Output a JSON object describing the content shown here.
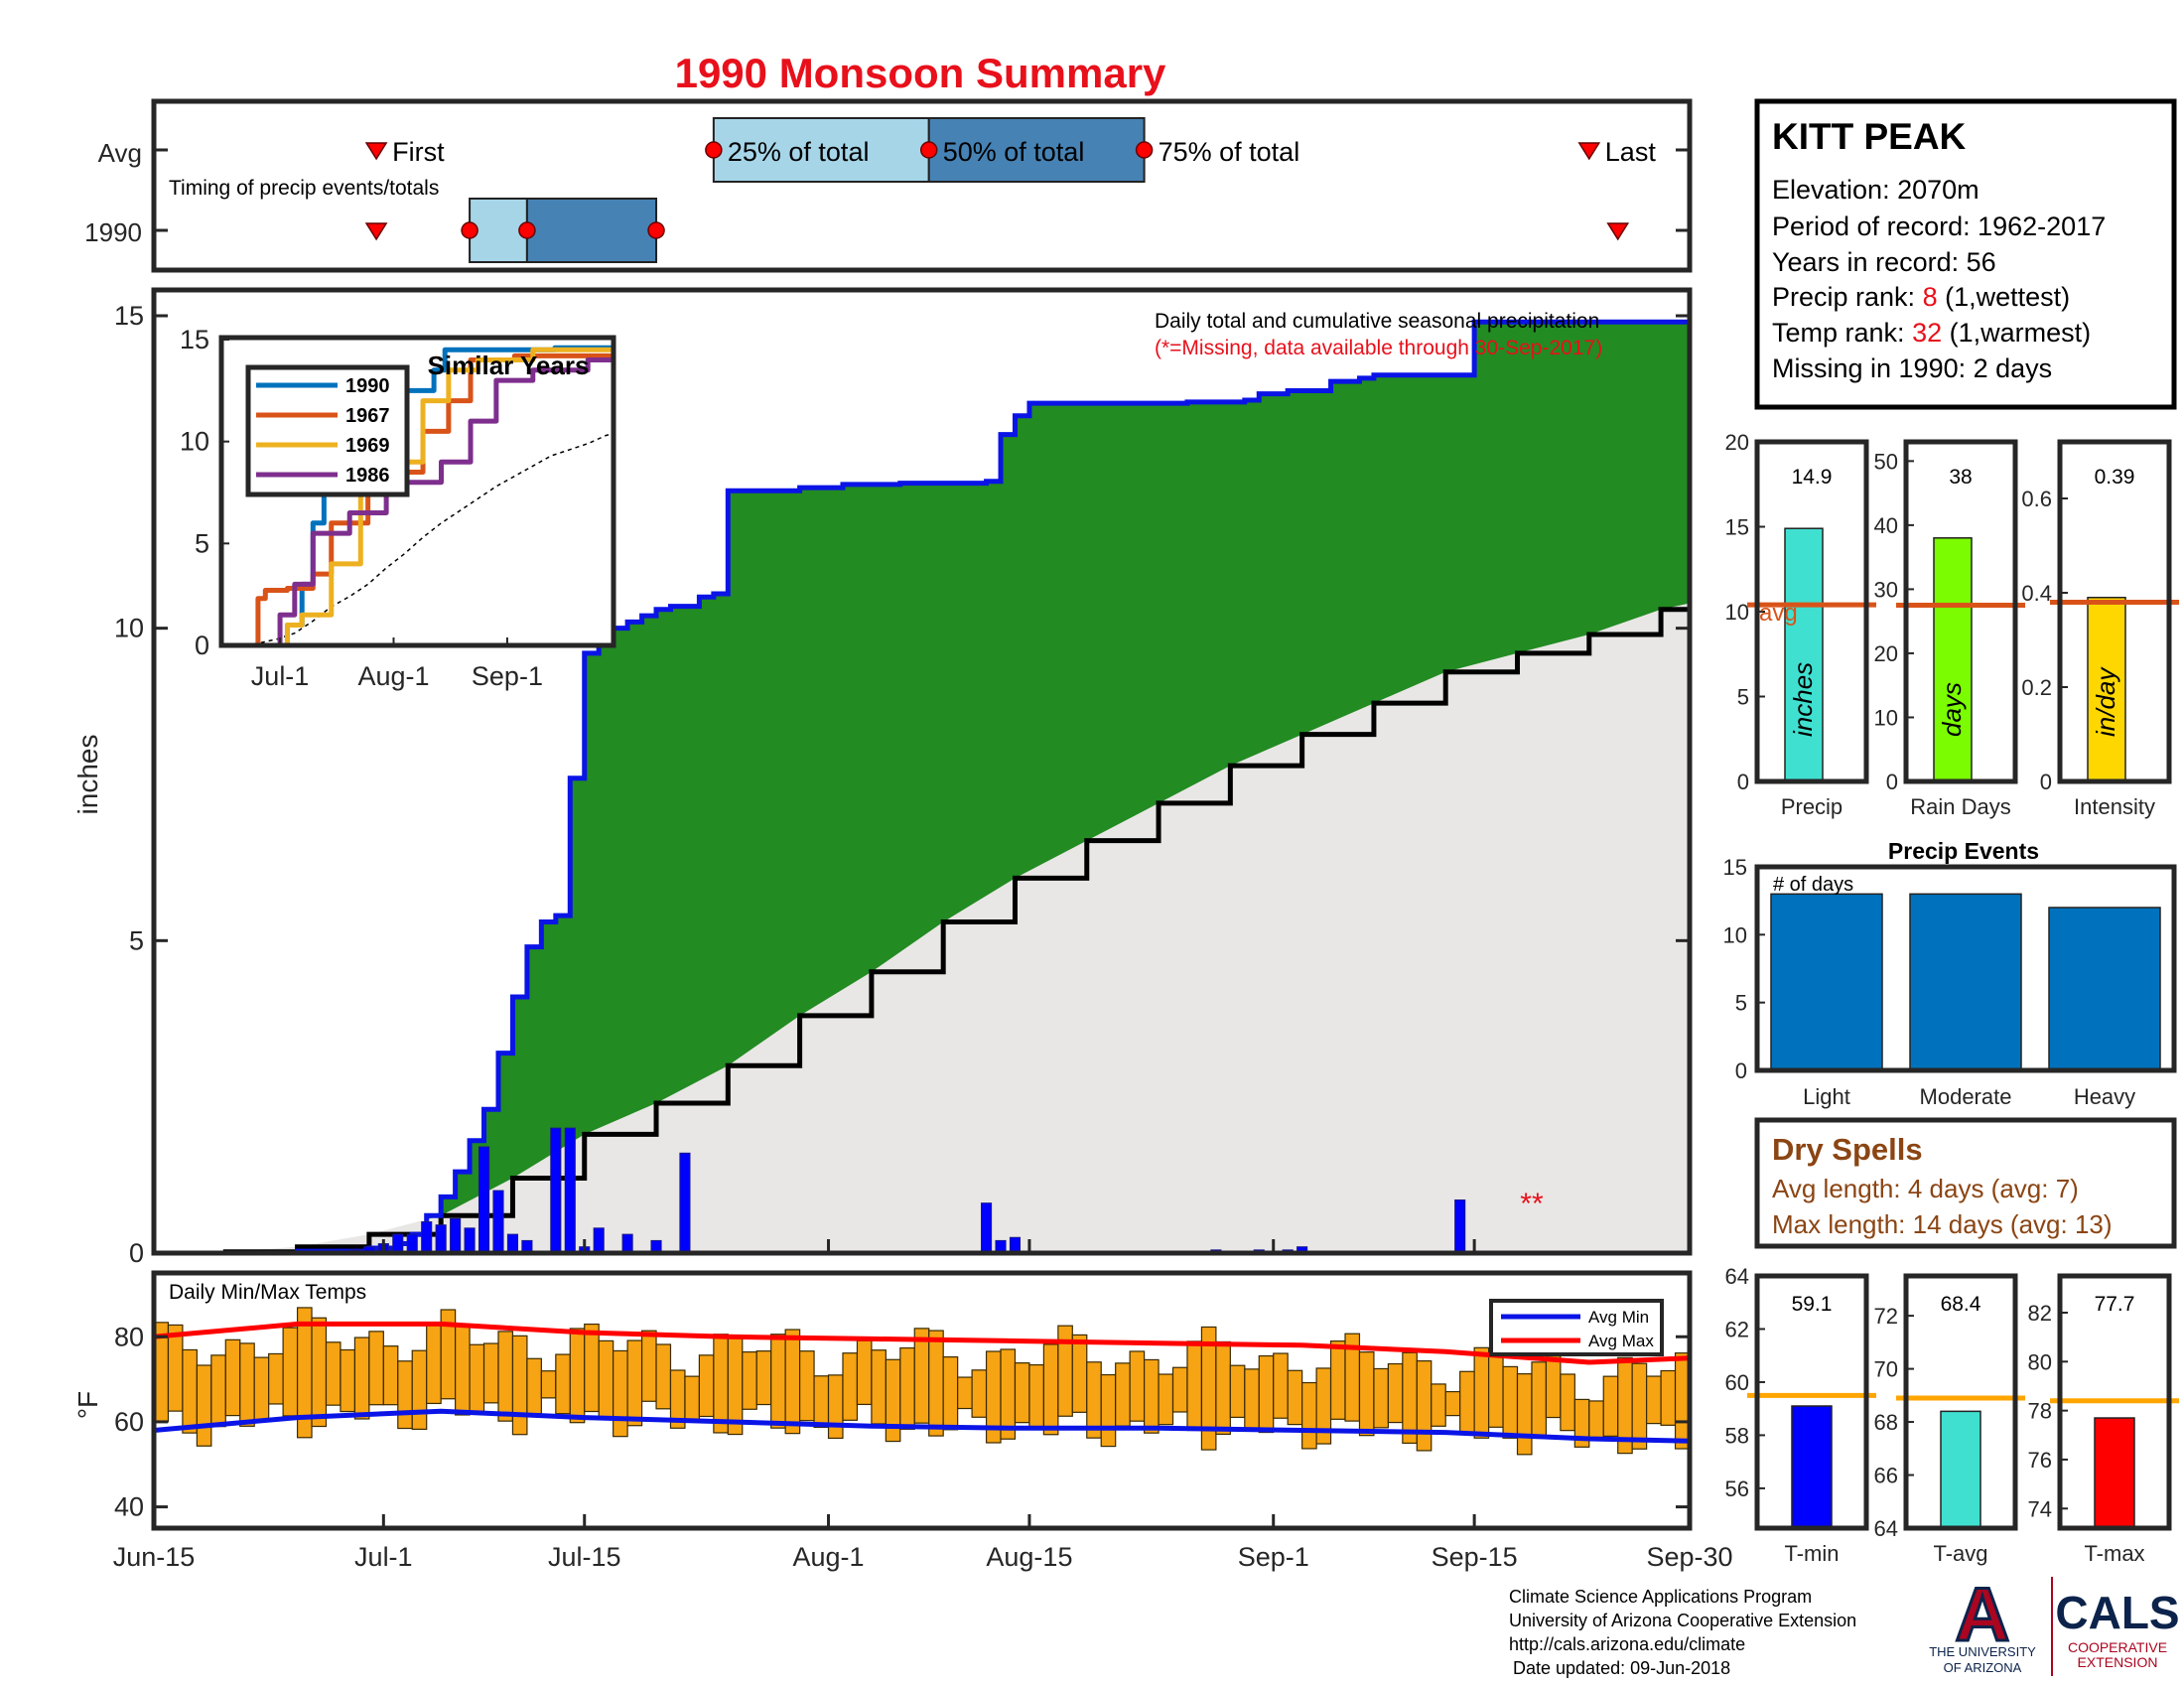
{
  "title": "1990 Monsoon Summary",
  "station": {
    "name": "KITT PEAK",
    "elevation": "Elevation: 2070m",
    "period": "Period of record: 1962-2017",
    "years": "Years in record: 56",
    "precip_rank_prefix": "Precip rank: ",
    "precip_rank_value": "8",
    "precip_rank_suffix": " (1,wettest)",
    "temp_rank_prefix": "Temp rank: ",
    "temp_rank_value": "32",
    "temp_rank_suffix": " (1,warmest)",
    "missing": "Missing in 1990: 2 days"
  },
  "colors": {
    "title": "#e8101b",
    "rank": "#e8101b",
    "green": "#228b22",
    "gray_fill": "#e9e7e5",
    "blue_line": "#0a14e6",
    "light_box": "#a6d5e8",
    "dark_box": "#4682b4",
    "orange_avg": "#d95319",
    "brown": "#8b4513",
    "temp_bar": "#f6a314",
    "ua_red": "#ab0520",
    "ua_navy": "#0c234b"
  },
  "timing": {
    "avg_label": "Avg",
    "year_label": "1990",
    "subtitle": "Timing of precip events/totals",
    "first_label": "First",
    "last_label": "Last",
    "p25_label": "25% of total",
    "p50_label": "50% of total",
    "p75_label": "75% of total",
    "avg_days": {
      "first": 15.5,
      "p25": 39,
      "p50": 54,
      "p75": 69,
      "last": 100
    },
    "year_days": {
      "first": 15.5,
      "p25": 22,
      "p50": 26,
      "p75": 35,
      "last": 102
    }
  },
  "main_chart": {
    "ylabel": "inches",
    "ylim": [
      0,
      15
    ],
    "yticks": [
      0,
      5,
      10,
      15
    ],
    "xlim_days": [
      0,
      107
    ],
    "xtick_labels": [
      "Jun-15",
      "Jul-1",
      "Jul-15",
      "Aug-1",
      "Aug-15",
      "Sep-1",
      "Sep-15",
      "Sep-30"
    ],
    "xtick_days": [
      0,
      16,
      30,
      47,
      61,
      78,
      92,
      107
    ],
    "note": "Daily total and cumulative seasonal precipitation",
    "missing_note": "(*=Missing, data available through 30-Sep-2017)",
    "missing_markers": "**",
    "missing_marker_day": 96,
    "cumulative_1990": [
      [
        0,
        0
      ],
      [
        5,
        0
      ],
      [
        10,
        0.03
      ],
      [
        15,
        0.08
      ],
      [
        17,
        0.15
      ],
      [
        18,
        0.3
      ],
      [
        19,
        0.6
      ],
      [
        20,
        0.9
      ],
      [
        21,
        1.3
      ],
      [
        22,
        1.8
      ],
      [
        23,
        2.3
      ],
      [
        24,
        3.2
      ],
      [
        25,
        4.1
      ],
      [
        26,
        4.9
      ],
      [
        27,
        5.3
      ],
      [
        28,
        5.4
      ],
      [
        29,
        7.6
      ],
      [
        30,
        9.6
      ],
      [
        31,
        10.0
      ],
      [
        33,
        10.1
      ],
      [
        34,
        10.2
      ],
      [
        35,
        10.3
      ],
      [
        36,
        10.35
      ],
      [
        38,
        10.5
      ],
      [
        39,
        10.55
      ],
      [
        40,
        12.2
      ],
      [
        45,
        12.25
      ],
      [
        48,
        12.3
      ],
      [
        52,
        12.32
      ],
      [
        58,
        12.35
      ],
      [
        59,
        13.1
      ],
      [
        60,
        13.4
      ],
      [
        61,
        13.6
      ],
      [
        70,
        13.6
      ],
      [
        72,
        13.62
      ],
      [
        76,
        13.65
      ],
      [
        77,
        13.75
      ],
      [
        79,
        13.8
      ],
      [
        82,
        13.95
      ],
      [
        84,
        14.0
      ],
      [
        85,
        14.05
      ],
      [
        91,
        14.05
      ],
      [
        92,
        14.9
      ],
      [
        107,
        14.95
      ]
    ],
    "avg_cumulative": [
      [
        0,
        0
      ],
      [
        5,
        0.02
      ],
      [
        10,
        0.1
      ],
      [
        15,
        0.3
      ],
      [
        20,
        0.6
      ],
      [
        25,
        1.2
      ],
      [
        30,
        1.9
      ],
      [
        35,
        2.4
      ],
      [
        40,
        3.0
      ],
      [
        45,
        3.8
      ],
      [
        50,
        4.5
      ],
      [
        55,
        5.3
      ],
      [
        60,
        6.0
      ],
      [
        65,
        6.6
      ],
      [
        70,
        7.2
      ],
      [
        75,
        7.8
      ],
      [
        80,
        8.3
      ],
      [
        85,
        8.8
      ],
      [
        90,
        9.3
      ],
      [
        95,
        9.6
      ],
      [
        100,
        9.9
      ],
      [
        105,
        10.3
      ],
      [
        107,
        10.4
      ]
    ],
    "daily_1990": [
      [
        14,
        0.05
      ],
      [
        15,
        0.1
      ],
      [
        16,
        0.15
      ],
      [
        17,
        0.3
      ],
      [
        18,
        0.3
      ],
      [
        19,
        0.5
      ],
      [
        20,
        0.45
      ],
      [
        21,
        0.55
      ],
      [
        22,
        0.4
      ],
      [
        23,
        1.7
      ],
      [
        24,
        1.0
      ],
      [
        25,
        0.3
      ],
      [
        26,
        0.2
      ],
      [
        28,
        2.0
      ],
      [
        29,
        2.0
      ],
      [
        30,
        0.1
      ],
      [
        31,
        0.4
      ],
      [
        33,
        0.3
      ],
      [
        35,
        0.2
      ],
      [
        37,
        1.6
      ],
      [
        58,
        0.8
      ],
      [
        59,
        0.2
      ],
      [
        60,
        0.25
      ],
      [
        74,
        0.05
      ],
      [
        77,
        0.05
      ],
      [
        79,
        0.05
      ],
      [
        80,
        0.1
      ],
      [
        91,
        0.85
      ]
    ]
  },
  "inset": {
    "title": "Similar Years",
    "ylim": [
      0,
      15
    ],
    "yticks": [
      0,
      5,
      10,
      15
    ],
    "xtick_labels": [
      "Jul-1",
      "Aug-1",
      "Sep-1"
    ],
    "xtick_days": [
      16,
      47,
      78
    ],
    "series": [
      {
        "name": "1990",
        "color": "#0072bd",
        "points": [
          [
            0,
            0
          ],
          [
            16,
            0
          ],
          [
            18,
            1
          ],
          [
            22,
            3
          ],
          [
            25,
            6
          ],
          [
            28,
            9
          ],
          [
            30,
            11
          ],
          [
            31,
            12.4
          ],
          [
            45,
            12.5
          ],
          [
            58,
            13.5
          ],
          [
            61,
            14.5
          ],
          [
            91,
            14.6
          ],
          [
            107,
            14.95
          ]
        ]
      },
      {
        "name": "1967",
        "color": "#d95319",
        "points": [
          [
            0,
            0
          ],
          [
            9,
            0
          ],
          [
            10,
            2.3
          ],
          [
            12,
            2.7
          ],
          [
            18,
            2.8
          ],
          [
            25,
            3.5
          ],
          [
            30,
            6
          ],
          [
            40,
            8.5
          ],
          [
            55,
            10.5
          ],
          [
            62,
            12
          ],
          [
            68,
            14
          ],
          [
            80,
            14.2
          ],
          [
            107,
            14.5
          ]
        ]
      },
      {
        "name": "1969",
        "color": "#edb120",
        "points": [
          [
            0,
            0
          ],
          [
            16,
            0
          ],
          [
            18,
            1
          ],
          [
            22,
            1.5
          ],
          [
            30,
            4
          ],
          [
            38,
            8
          ],
          [
            45,
            9
          ],
          [
            55,
            12
          ],
          [
            62,
            13.5
          ],
          [
            70,
            14
          ],
          [
            85,
            14.5
          ],
          [
            107,
            14.5
          ]
        ]
      },
      {
        "name": "1986",
        "color": "#7e2f8e",
        "points": [
          [
            0,
            0
          ],
          [
            12,
            0
          ],
          [
            16,
            1.5
          ],
          [
            20,
            3
          ],
          [
            25,
            5.5
          ],
          [
            35,
            6.5
          ],
          [
            45,
            8
          ],
          [
            60,
            9
          ],
          [
            68,
            11
          ],
          [
            75,
            13
          ],
          [
            85,
            13.5
          ],
          [
            100,
            14
          ],
          [
            107,
            14
          ]
        ]
      }
    ]
  },
  "summary_bars": [
    {
      "label": "Precip",
      "unit": "inches",
      "value": 14.9,
      "value_text": "14.9",
      "avg": 10.4,
      "avg_label": "avg",
      "ymax": 20,
      "yticks": [
        0,
        5,
        10,
        15,
        20
      ],
      "color": "#40e0d0"
    },
    {
      "label": "Rain Days",
      "unit": "days",
      "value": 38,
      "value_text": "38",
      "avg": 27.5,
      "ymax": 53,
      "yticks": [
        0,
        10,
        20,
        30,
        40,
        50
      ],
      "color": "#7cfc00"
    },
    {
      "label": "Intensity",
      "unit": "in/day",
      "value": 0.39,
      "value_text": "0.39",
      "avg": 0.38,
      "ymax": 0.72,
      "yticks": [
        0,
        0.2,
        0.4,
        0.6
      ],
      "color": "#ffd700"
    }
  ],
  "precip_events": {
    "title": "Precip Events",
    "ylabel_note": "# of days",
    "ymax": 15,
    "yticks": [
      0,
      5,
      10,
      15
    ],
    "categories": [
      "Light",
      "Moderate",
      "Heavy"
    ],
    "values": [
      13,
      13,
      12
    ],
    "color": "#0072bd"
  },
  "dry_spells": {
    "title": "Dry Spells",
    "avg_length": "Avg length: 4 days (avg: 7)",
    "max_length": "Max length: 14 days (avg: 13)"
  },
  "temps": {
    "title": "Daily Min/Max Temps",
    "ylabel": "°F",
    "ylim": [
      35,
      95
    ],
    "yticks": [
      40,
      60,
      80
    ],
    "legend": [
      "Avg Min",
      "Avg Max"
    ],
    "avg_min": [
      [
        0,
        58
      ],
      [
        10,
        61
      ],
      [
        20,
        62.5
      ],
      [
        30,
        61
      ],
      [
        40,
        60
      ],
      [
        50,
        59
      ],
      [
        60,
        58.5
      ],
      [
        70,
        58.5
      ],
      [
        80,
        58
      ],
      [
        90,
        57.5
      ],
      [
        100,
        56
      ],
      [
        107,
        55.5
      ]
    ],
    "avg_max": [
      [
        0,
        80
      ],
      [
        10,
        83
      ],
      [
        20,
        83
      ],
      [
        30,
        81
      ],
      [
        40,
        80
      ],
      [
        50,
        79.5
      ],
      [
        60,
        79
      ],
      [
        70,
        78.5
      ],
      [
        80,
        78
      ],
      [
        90,
        76.5
      ],
      [
        100,
        74
      ],
      [
        107,
        75
      ]
    ]
  },
  "temp_bars": [
    {
      "label": "T-min",
      "value": 59.1,
      "value_text": "59.1",
      "avg": 59.5,
      "ymin": 54.5,
      "ymax": 64,
      "yticks": [
        56,
        58,
        60,
        62,
        64
      ],
      "color": "#0000ff"
    },
    {
      "label": "T-avg",
      "value": 68.4,
      "value_text": "68.4",
      "avg": 68.9,
      "ymin": 64,
      "ymax": 73.5,
      "yticks": [
        64,
        66,
        68,
        70,
        72
      ],
      "color": "#40e0d0"
    },
    {
      "label": "T-max",
      "value": 77.7,
      "value_text": "77.7",
      "avg": 78.4,
      "ymin": 73.2,
      "ymax": 83.5,
      "yticks": [
        74,
        76,
        78,
        80,
        82
      ],
      "color": "#ff0000"
    }
  ],
  "footer": {
    "line1": "Climate Science Applications Program",
    "line2": "University of Arizona Cooperative Extension",
    "line3": "http://cals.arizona.edu/climate",
    "line4": "Date updated: 09-Jun-2018",
    "ua_line1": "THE UNIVERSITY",
    "ua_line2": "OF ARIZONA",
    "cals": "CALS",
    "cals_sub1": "COOPERATIVE",
    "cals_sub2": "EXTENSION"
  }
}
